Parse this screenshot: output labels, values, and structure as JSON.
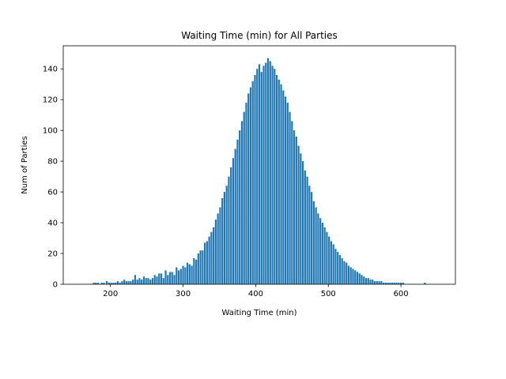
{
  "chart_data": {
    "type": "bar",
    "title": "Waiting Time (min) for All Parties",
    "xlabel": "Waiting Time (min)",
    "ylabel": "Num of Parties",
    "xlim": [
      135,
      675
    ],
    "ylim": [
      0,
      155
    ],
    "xticks": [
      200,
      300,
      400,
      500,
      600
    ],
    "yticks": [
      0,
      20,
      40,
      60,
      80,
      100,
      120,
      140
    ],
    "grid": false,
    "bar_color": "#1f77b4",
    "x": [
      177,
      180,
      183,
      188,
      191,
      195,
      198,
      201,
      204,
      207,
      210,
      213,
      216,
      219,
      222,
      225,
      228,
      231,
      234,
      237,
      240,
      243,
      246,
      249,
      252,
      255,
      258,
      261,
      264,
      267,
      270,
      273,
      276,
      279,
      282,
      285,
      288,
      291,
      294,
      297,
      300,
      303,
      306,
      309,
      312,
      315,
      318,
      321,
      324,
      327,
      330,
      333,
      336,
      339,
      342,
      345,
      348,
      351,
      354,
      357,
      360,
      363,
      366,
      369,
      372,
      375,
      378,
      381,
      384,
      387,
      390,
      393,
      396,
      399,
      402,
      405,
      408,
      411,
      414,
      417,
      420,
      423,
      426,
      429,
      432,
      435,
      438,
      441,
      444,
      447,
      450,
      453,
      456,
      459,
      462,
      465,
      468,
      471,
      474,
      477,
      480,
      483,
      486,
      489,
      492,
      495,
      498,
      501,
      504,
      507,
      510,
      513,
      516,
      519,
      522,
      525,
      528,
      531,
      534,
      537,
      540,
      543,
      546,
      549,
      552,
      555,
      558,
      561,
      564,
      567,
      570,
      573,
      576,
      579,
      582,
      585,
      588,
      591,
      594,
      597,
      600,
      603,
      633
    ],
    "values": [
      1,
      1,
      1,
      1,
      1,
      2,
      1,
      1,
      1,
      1,
      2,
      1,
      2,
      3,
      2,
      2,
      2,
      3,
      6,
      3,
      4,
      3,
      5,
      4,
      4,
      3,
      4,
      6,
      5,
      7,
      7,
      4,
      9,
      6,
      8,
      8,
      6,
      11,
      9,
      10,
      12,
      11,
      14,
      13,
      12,
      17,
      16,
      20,
      22,
      22,
      27,
      28,
      31,
      34,
      37,
      42,
      46,
      50,
      56,
      60,
      64,
      70,
      76,
      82,
      88,
      94,
      100,
      106,
      112,
      118,
      124,
      128,
      132,
      136,
      140,
      143,
      138,
      142,
      144,
      147,
      145,
      142,
      140,
      136,
      133,
      130,
      126,
      122,
      118,
      112,
      106,
      100,
      96,
      90,
      85,
      80,
      74,
      70,
      64,
      60,
      54,
      50,
      46,
      43,
      40,
      37,
      34,
      31,
      28,
      26,
      23,
      21,
      19,
      17,
      15,
      14,
      12,
      11,
      10,
      9,
      8,
      7,
      6,
      5,
      4,
      4,
      3,
      3,
      2,
      2,
      2,
      2,
      1,
      1,
      1,
      1,
      1,
      1,
      1,
      1,
      1,
      1,
      1
    ]
  }
}
